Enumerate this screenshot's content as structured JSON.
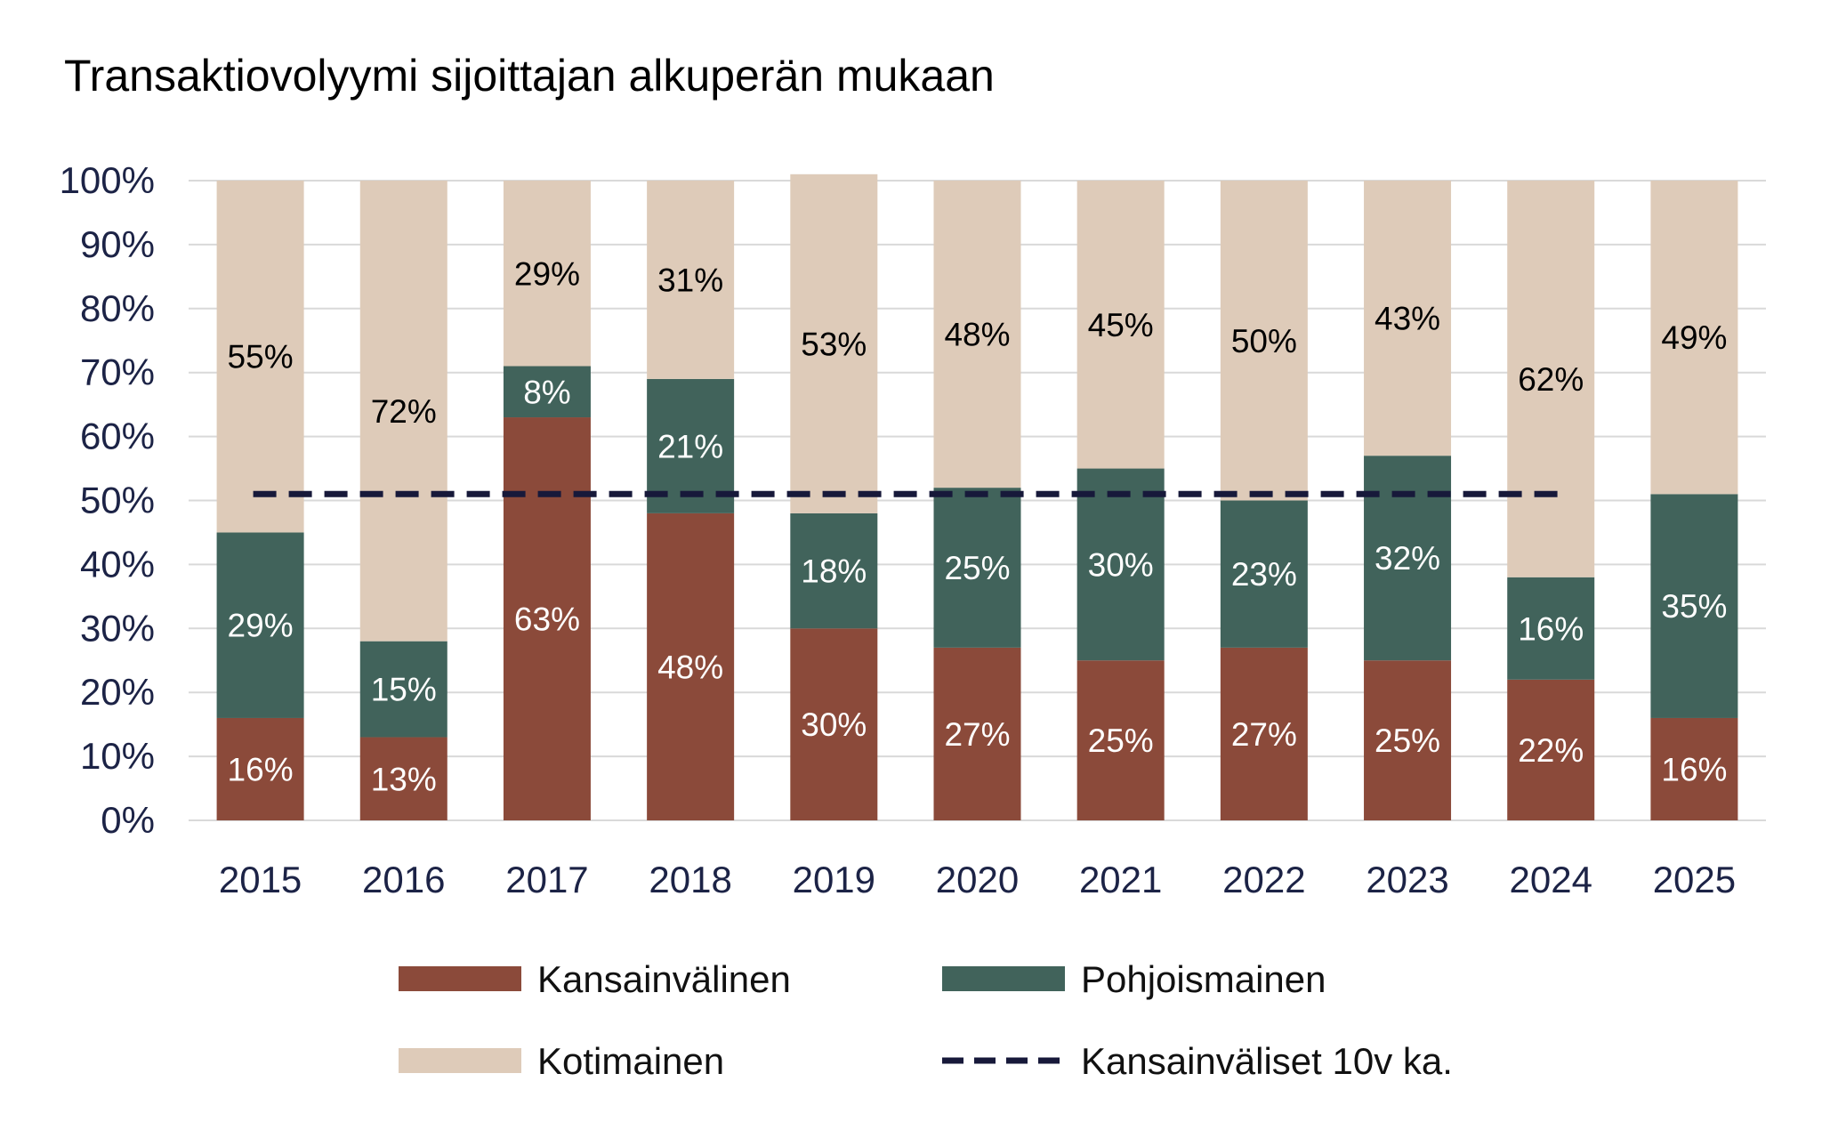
{
  "chart_data": {
    "type": "bar",
    "stacked": true,
    "title": "Transaktiovolyymi sijoittajan alkuperän mukaan",
    "categories": [
      "2015",
      "2016",
      "2017",
      "2018",
      "2019",
      "2020",
      "2021",
      "2022",
      "2023",
      "2024",
      "2025"
    ],
    "series": [
      {
        "name": "Kansainvälinen",
        "color": "#8b4a3a",
        "label_color": "#ffffff",
        "values": [
          16,
          13,
          63,
          48,
          30,
          27,
          25,
          27,
          25,
          22,
          16
        ]
      },
      {
        "name": "Pohjoismainen",
        "color": "#41635b",
        "label_color": "#ffffff",
        "values": [
          29,
          15,
          8,
          21,
          18,
          25,
          30,
          23,
          32,
          16,
          35
        ]
      },
      {
        "name": "Kotimainen",
        "color": "#decbb9",
        "label_color": "#000000",
        "values": [
          55,
          72,
          29,
          31,
          53,
          48,
          45,
          50,
          43,
          62,
          49
        ]
      }
    ],
    "reference_line": {
      "name": "Kansainväliset 10v ka.",
      "value": 51,
      "from": "2015",
      "to": "2024",
      "color": "#17193a",
      "style": "dashed"
    },
    "ylim": [
      0,
      100
    ],
    "yticks": [
      "0%",
      "10%",
      "20%",
      "30%",
      "40%",
      "50%",
      "60%",
      "70%",
      "80%",
      "90%",
      "100%"
    ],
    "grid": true,
    "legend_position": "bottom",
    "legend": [
      "Kansainvälinen",
      "Pohjoismainen",
      "Kotimainen",
      "Kansainväliset 10v ka."
    ],
    "xlabel": "",
    "ylabel": ""
  }
}
